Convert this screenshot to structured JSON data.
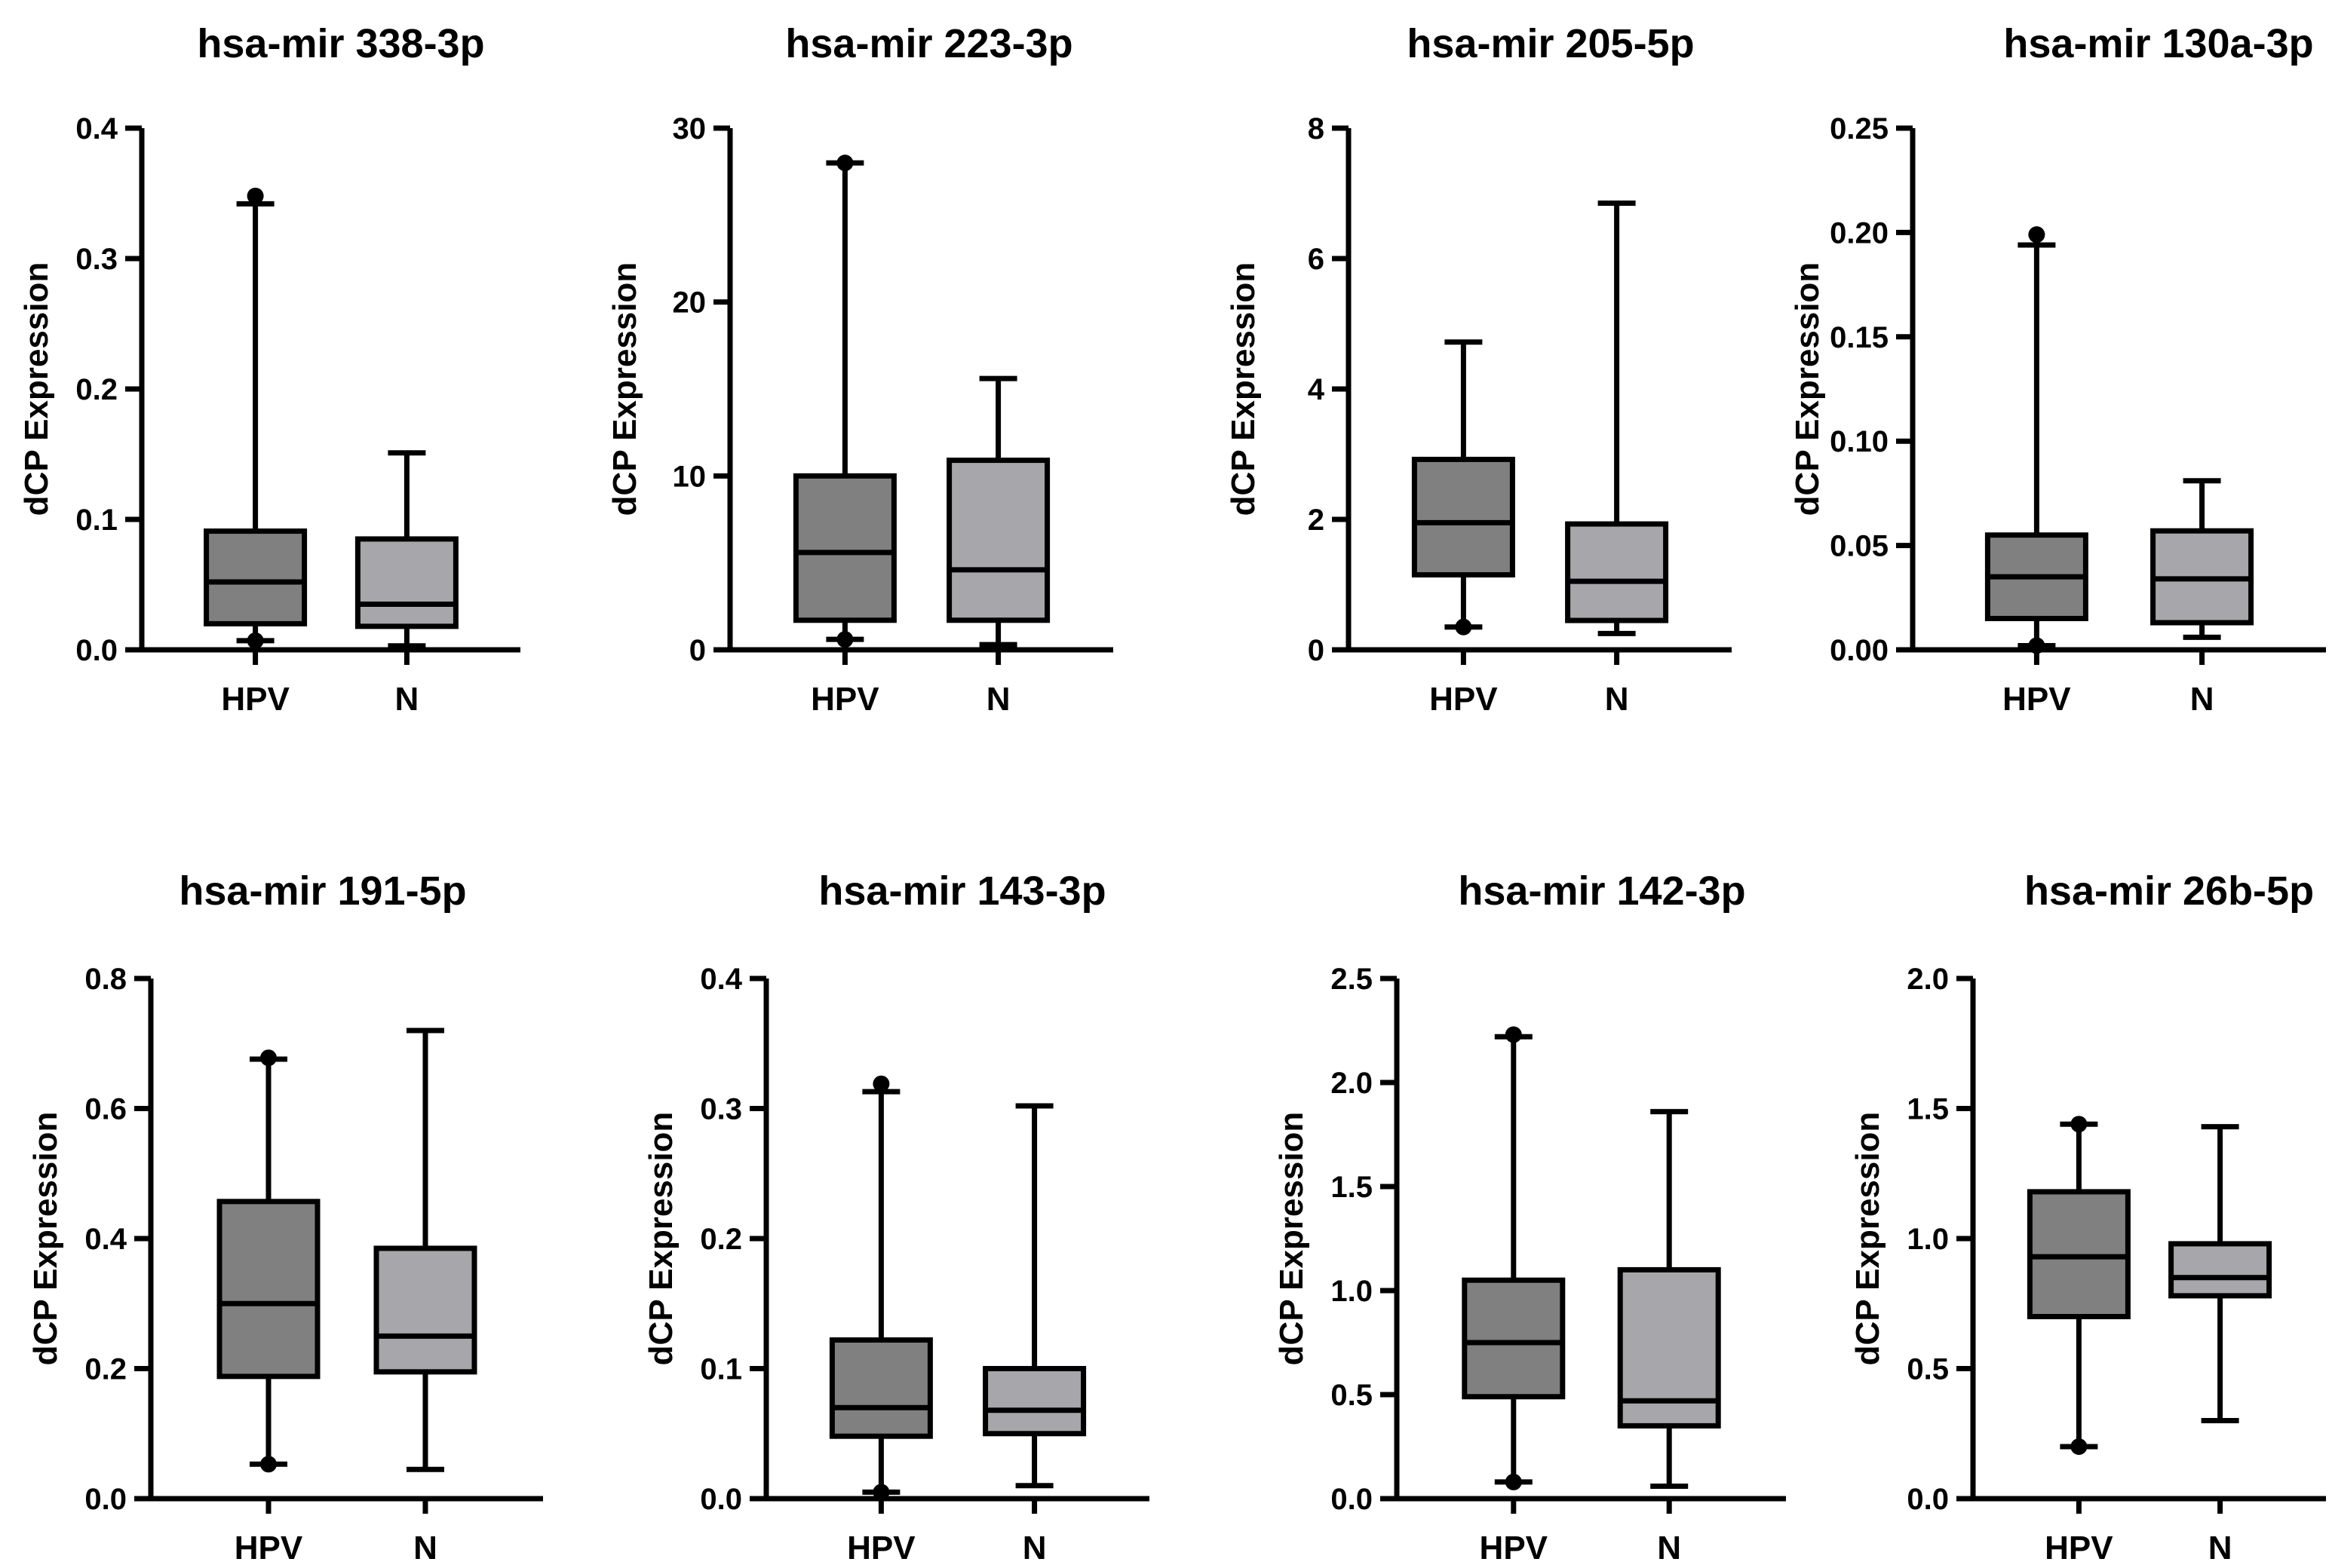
{
  "chart_data": [
    {
      "type": "boxplot",
      "title": "hsa-mir 338-3p",
      "ylabel": "dCP Expression",
      "ylim": [
        0,
        0.4
      ],
      "yticks": [
        "0.0",
        "0.1",
        "0.2",
        "0.3",
        "0.4"
      ],
      "categories": [
        "HPV",
        "N"
      ],
      "boxes": [
        {
          "name": "HPV",
          "min": 0.007,
          "q1": 0.02,
          "median": 0.052,
          "q3": 0.091,
          "max": 0.342,
          "dots": [
            0.007,
            0.348
          ],
          "color": "#808080"
        },
        {
          "name": "N",
          "min": 0.003,
          "q1": 0.018,
          "median": 0.035,
          "q3": 0.085,
          "max": 0.151,
          "dots": [],
          "color": "#a6a6ab"
        }
      ]
    },
    {
      "type": "boxplot",
      "title": "hsa-mir 223-3p",
      "ylabel": "dCP Expression",
      "ylim": [
        0,
        30
      ],
      "yticks": [
        "0",
        "10",
        "20",
        "30"
      ],
      "categories": [
        "HPV",
        "N"
      ],
      "boxes": [
        {
          "name": "HPV",
          "min": 0.6,
          "q1": 1.7,
          "median": 5.6,
          "q3": 10.0,
          "max": 28.0,
          "dots": [
            0.6,
            28.0
          ],
          "color": "#808080"
        },
        {
          "name": "N",
          "min": 0.3,
          "q1": 1.7,
          "median": 4.6,
          "q3": 10.9,
          "max": 15.6,
          "dots": [],
          "color": "#a6a6ab"
        }
      ]
    },
    {
      "type": "boxplot",
      "title": "hsa-mir 205-5p",
      "ylabel": "dCP Expression",
      "ylim": [
        0,
        8
      ],
      "yticks": [
        "0",
        "2",
        "4",
        "6",
        "8"
      ],
      "categories": [
        "HPV",
        "N"
      ],
      "boxes": [
        {
          "name": "HPV",
          "min": 0.35,
          "q1": 1.15,
          "median": 1.95,
          "q3": 2.92,
          "max": 4.72,
          "dots": [
            0.35
          ],
          "color": "#808080"
        },
        {
          "name": "N",
          "min": 0.25,
          "q1": 0.45,
          "median": 1.05,
          "q3": 1.93,
          "max": 6.85,
          "dots": [],
          "color": "#a6a6ab"
        }
      ]
    },
    {
      "type": "boxplot",
      "title": "hsa-mir 130a-3p",
      "ylabel": "dCP Expression",
      "ylim": [
        0,
        0.25
      ],
      "yticks": [
        "0.00",
        "0.05",
        "0.10",
        "0.15",
        "0.20",
        "0.25"
      ],
      "categories": [
        "HPV",
        "N"
      ],
      "boxes": [
        {
          "name": "HPV",
          "min": 0.002,
          "q1": 0.015,
          "median": 0.035,
          "q3": 0.055,
          "max": 0.194,
          "dots": [
            0.002,
            0.199
          ],
          "color": "#808080"
        },
        {
          "name": "N",
          "min": 0.006,
          "q1": 0.013,
          "median": 0.034,
          "q3": 0.057,
          "max": 0.081,
          "dots": [],
          "color": "#a6a6ab"
        }
      ]
    },
    {
      "type": "boxplot",
      "title": "hsa-mir 191-5p",
      "ylabel": "dCP Expression",
      "ylim": [
        0,
        0.8
      ],
      "yticks": [
        "0.0",
        "0.2",
        "0.4",
        "0.6",
        "0.8"
      ],
      "categories": [
        "HPV",
        "N"
      ],
      "boxes": [
        {
          "name": "HPV",
          "min": 0.053,
          "q1": 0.188,
          "median": 0.3,
          "q3": 0.457,
          "max": 0.676,
          "dots": [
            0.053,
            0.678
          ],
          "color": "#808080"
        },
        {
          "name": "N",
          "min": 0.045,
          "q1": 0.195,
          "median": 0.25,
          "q3": 0.385,
          "max": 0.72,
          "dots": [],
          "color": "#a6a6ab"
        }
      ]
    },
    {
      "type": "boxplot",
      "title": "hsa-mir 143-3p",
      "ylabel": "dCP Expression",
      "ylim": [
        0,
        0.4
      ],
      "yticks": [
        "0.0",
        "0.1",
        "0.2",
        "0.3",
        "0.4"
      ],
      "categories": [
        "HPV",
        "N"
      ],
      "boxes": [
        {
          "name": "HPV",
          "min": 0.005,
          "q1": 0.048,
          "median": 0.07,
          "q3": 0.122,
          "max": 0.313,
          "dots": [
            0.005,
            0.319
          ],
          "color": "#808080"
        },
        {
          "name": "N",
          "min": 0.01,
          "q1": 0.05,
          "median": 0.068,
          "q3": 0.1,
          "max": 0.302,
          "dots": [],
          "color": "#a6a6ab"
        }
      ]
    },
    {
      "type": "boxplot",
      "title": "hsa-mir 142-3p",
      "ylabel": "dCP Expression",
      "ylim": [
        0,
        2.5
      ],
      "yticks": [
        "0.0",
        "0.5",
        "1.0",
        "1.5",
        "2.0",
        "2.5"
      ],
      "categories": [
        "HPV",
        "N"
      ],
      "boxes": [
        {
          "name": "HPV",
          "min": 0.08,
          "q1": 0.49,
          "median": 0.75,
          "q3": 1.05,
          "max": 2.22,
          "dots": [
            0.08,
            2.23
          ],
          "color": "#808080"
        },
        {
          "name": "N",
          "min": 0.06,
          "q1": 0.35,
          "median": 0.47,
          "q3": 1.1,
          "max": 1.86,
          "dots": [],
          "color": "#a6a6ab"
        }
      ]
    },
    {
      "type": "boxplot",
      "title": "hsa-mir 26b-5p",
      "ylabel": "dCP Expression",
      "ylim": [
        0,
        2.0
      ],
      "yticks": [
        "0.0",
        "0.5",
        "1.0",
        "1.5",
        "2.0"
      ],
      "categories": [
        "HPV",
        "N"
      ],
      "boxes": [
        {
          "name": "HPV",
          "min": 0.2,
          "q1": 0.7,
          "median": 0.93,
          "q3": 1.18,
          "max": 1.44,
          "dots": [
            0.2,
            1.44
          ],
          "color": "#808080"
        },
        {
          "name": "N",
          "min": 0.3,
          "q1": 0.78,
          "median": 0.85,
          "q3": 0.98,
          "max": 1.43,
          "dots": [],
          "color": "#a6a6ab"
        }
      ]
    }
  ]
}
